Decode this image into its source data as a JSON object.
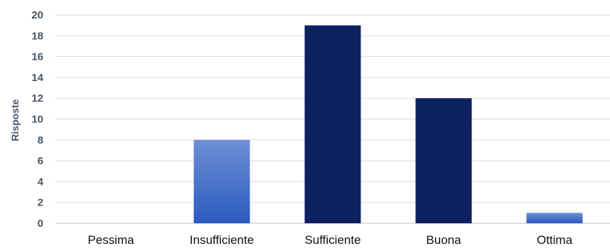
{
  "chart_data": {
    "type": "bar",
    "title": "",
    "xlabel": "",
    "ylabel": "Risposte",
    "categories": [
      "Pessima",
      "Insufficiente",
      "Sufficiente",
      "Buona",
      "Ottima"
    ],
    "values": [
      0,
      8,
      19,
      12,
      1
    ],
    "ylim": [
      0,
      20
    ],
    "yticks": [
      0,
      2,
      4,
      6,
      8,
      10,
      12,
      14,
      16,
      18,
      20
    ],
    "grid": true,
    "legend": "none",
    "bar_styles": [
      "light",
      "light",
      "dark",
      "dark",
      "light"
    ],
    "colors": {
      "dark": "#0d2160",
      "light_top": "#6f8fd4",
      "light_bottom": "#2a5bbf",
      "grid": "#d9d9d9",
      "axis": "#bfbfbf"
    }
  }
}
